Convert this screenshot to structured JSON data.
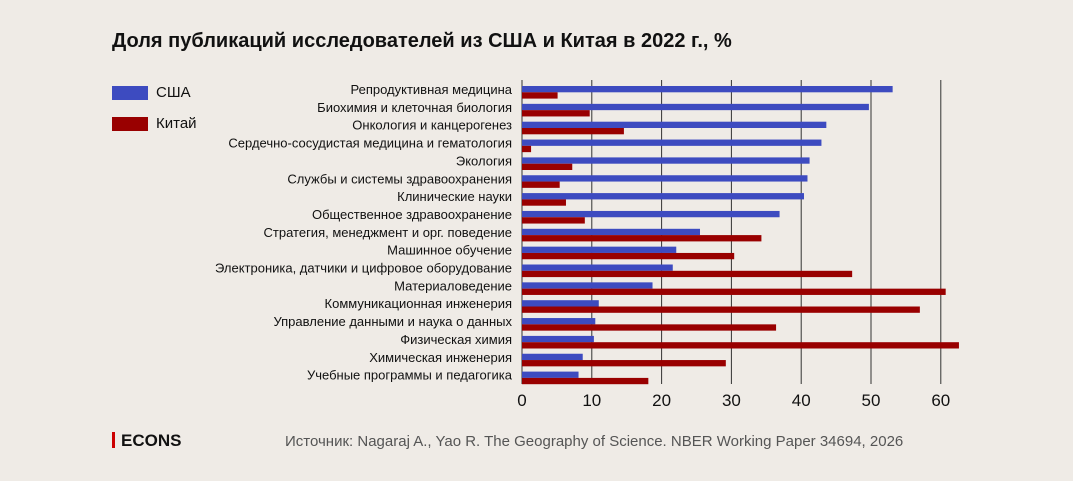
{
  "title": "Доля публикаций исследователей из США и Китая в 2022 г., %",
  "source": "Источник: Nagaraj A., Yao R. The Geography of Science. NBER Working Paper 34694, 2026",
  "logo": "ECONS",
  "chart_data": {
    "type": "bar",
    "orientation": "horizontal",
    "title": "Доля публикаций исследователей из США и Китая в 2022 г., %",
    "categories": [
      "Репродуктивная медицина",
      "Биохимия и клеточная биология",
      "Онкология и канцерогенез",
      "Сердечно-сосудистая медицина и гематология",
      "Экология",
      "Службы и системы здравоохранения",
      "Клинические науки",
      "Общественное здравоохранение",
      "Стратегия, менеджмент и орг. поведение",
      "Машинное обучение",
      "Электроника, датчики и цифровое оборудование",
      "Материаловедение",
      "Коммуникационная инженерия",
      "Управление данными и наука о данных",
      "Физическая химия",
      "Химическая инженерия",
      "Учебные программы и педагогика"
    ],
    "series": [
      {
        "name": "США",
        "color": "#3d4bc0",
        "values": [
          53.1,
          49.7,
          43.6,
          42.9,
          41.2,
          40.9,
          40.4,
          36.9,
          25.5,
          22.1,
          21.6,
          18.7,
          11.0,
          10.5,
          10.3,
          8.7,
          8.1
        ]
      },
      {
        "name": "Китай",
        "color": "#990000",
        "values": [
          5.1,
          9.7,
          14.6,
          1.3,
          7.2,
          5.4,
          6.3,
          9.0,
          34.3,
          30.4,
          47.3,
          60.7,
          57.0,
          36.4,
          62.6,
          29.2,
          18.1
        ]
      }
    ],
    "xticks": [
      0,
      10,
      20,
      30,
      40,
      50,
      60
    ],
    "xlim": [
      0,
      65
    ],
    "grid": true,
    "legend": "top-left"
  }
}
